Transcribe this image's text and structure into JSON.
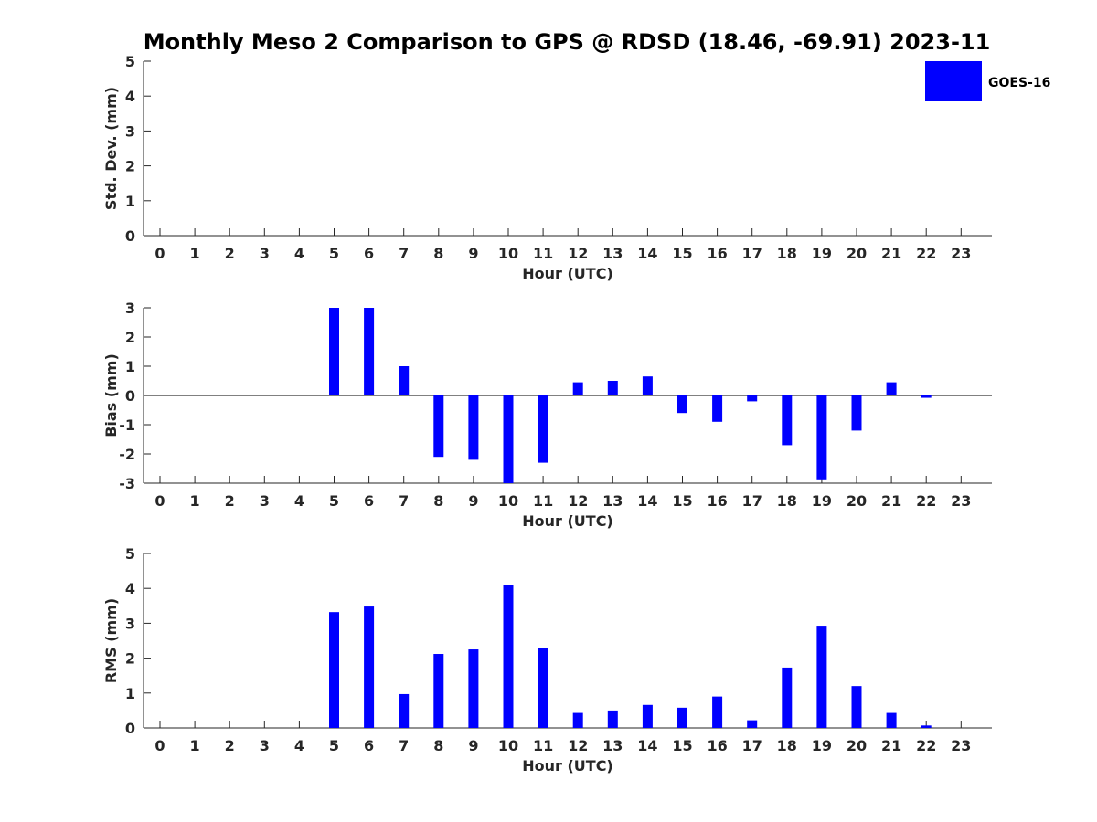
{
  "title": "Monthly Meso 2 Comparison to GPS @ RDSD (18.46, -69.91) 2023-11",
  "legend": {
    "label": "GOES-16",
    "color": "#0000ff",
    "placement": "top-right"
  },
  "bar_color": "#0000ff",
  "chart_data": [
    {
      "type": "bar",
      "name": "std",
      "xlabel": "Hour (UTC)",
      "ylabel": "Std. Dev. (mm)",
      "categories": [
        "0",
        "1",
        "2",
        "3",
        "4",
        "5",
        "6",
        "7",
        "8",
        "9",
        "10",
        "11",
        "12",
        "13",
        "14",
        "15",
        "16",
        "17",
        "18",
        "19",
        "20",
        "21",
        "22",
        "23"
      ],
      "values": [
        null,
        null,
        null,
        null,
        null,
        null,
        null,
        null,
        null,
        null,
        null,
        null,
        null,
        null,
        null,
        null,
        null,
        null,
        null,
        null,
        null,
        null,
        null,
        null
      ],
      "ylim": [
        0,
        5
      ],
      "yticks": [
        0,
        1,
        2,
        3,
        4,
        5
      ],
      "zero_line": false
    },
    {
      "type": "bar",
      "name": "bias",
      "xlabel": "Hour (UTC)",
      "ylabel": "Bias (mm)",
      "categories": [
        "0",
        "1",
        "2",
        "3",
        "4",
        "5",
        "6",
        "7",
        "8",
        "9",
        "10",
        "11",
        "12",
        "13",
        "14",
        "15",
        "16",
        "17",
        "18",
        "19",
        "20",
        "21",
        "22",
        "23"
      ],
      "values": [
        null,
        null,
        null,
        null,
        null,
        3.0,
        3.0,
        1.0,
        -2.1,
        -2.2,
        -3.0,
        -2.3,
        0.45,
        0.5,
        0.65,
        -0.6,
        -0.9,
        -0.2,
        -1.7,
        -2.9,
        -1.2,
        0.45,
        -0.08,
        null
      ],
      "ylim": [
        -3,
        3
      ],
      "yticks": [
        -3,
        -2,
        -1,
        0,
        1,
        2,
        3
      ],
      "zero_line": true
    },
    {
      "type": "bar",
      "name": "rms",
      "xlabel": "Hour (UTC)",
      "ylabel": "RMS (mm)",
      "categories": [
        "0",
        "1",
        "2",
        "3",
        "4",
        "5",
        "6",
        "7",
        "8",
        "9",
        "10",
        "11",
        "12",
        "13",
        "14",
        "15",
        "16",
        "17",
        "18",
        "19",
        "20",
        "21",
        "22",
        "23"
      ],
      "values": [
        null,
        null,
        null,
        null,
        null,
        3.32,
        3.48,
        0.97,
        2.12,
        2.25,
        4.1,
        2.3,
        0.43,
        0.5,
        0.66,
        0.58,
        0.9,
        0.22,
        1.73,
        2.93,
        1.2,
        0.43,
        0.07,
        null
      ],
      "ylim": [
        0,
        5
      ],
      "yticks": [
        0,
        1,
        2,
        3,
        4,
        5
      ],
      "zero_line": false
    }
  ]
}
